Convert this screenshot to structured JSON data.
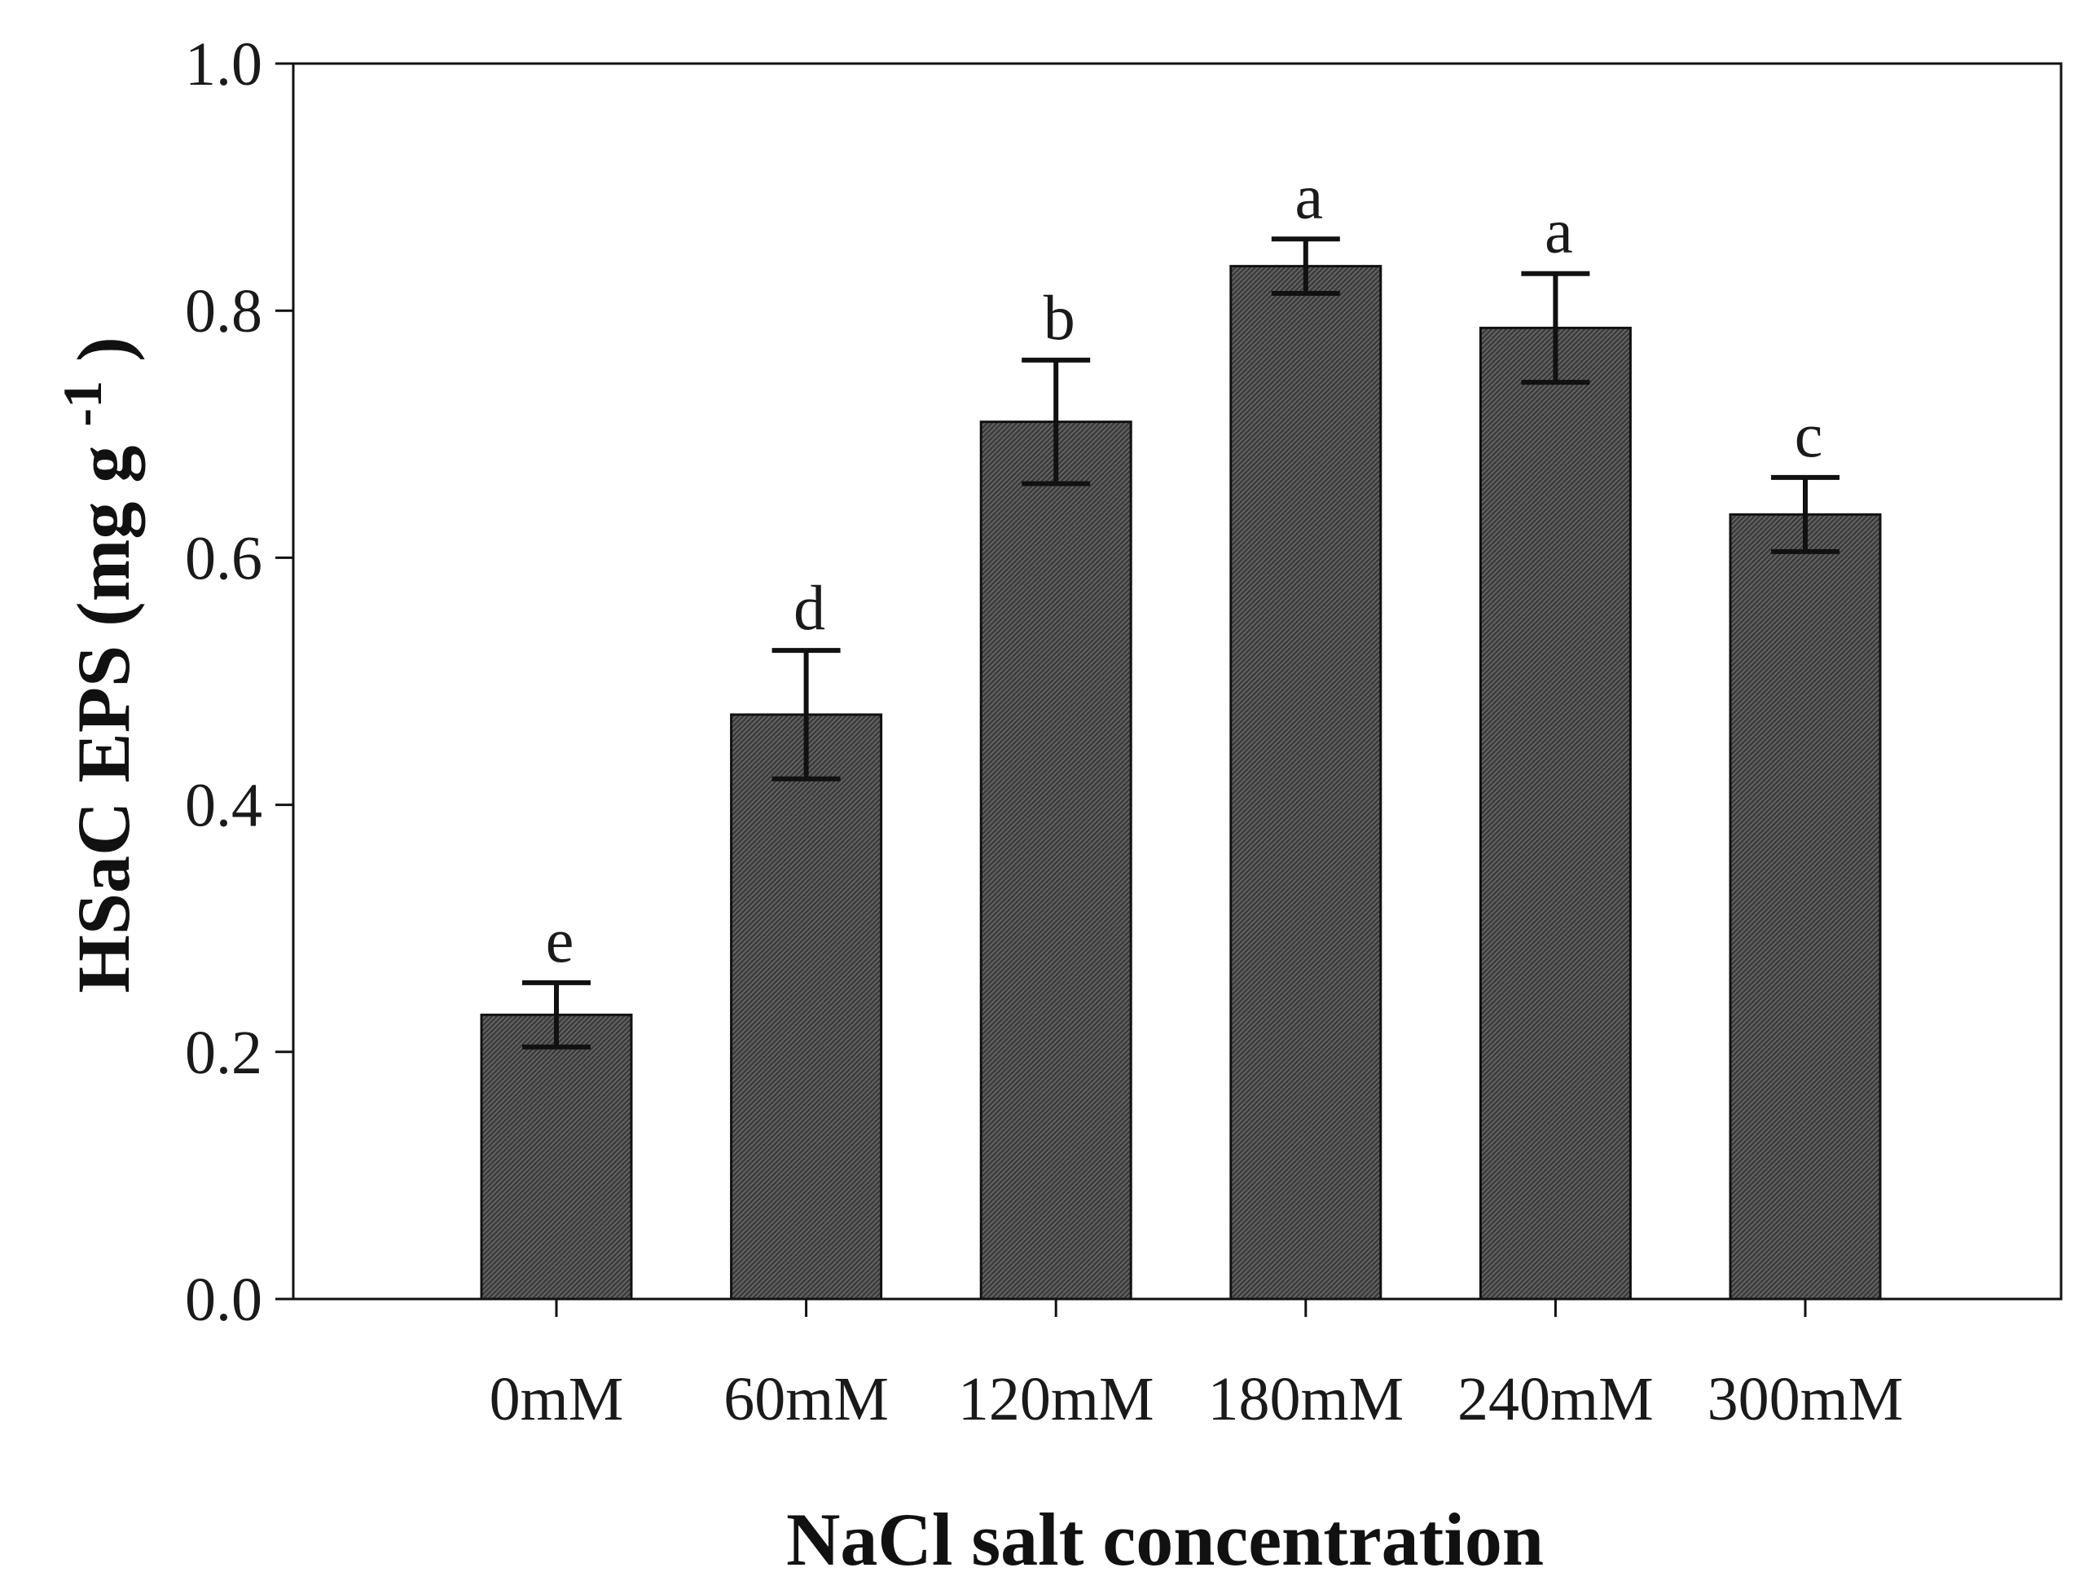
{
  "chart_data": {
    "type": "bar",
    "categories": [
      "0mM",
      "60mM",
      "120mM",
      "180mM",
      "240mM",
      "300mM"
    ],
    "values": [
      0.23,
      0.473,
      0.71,
      0.836,
      0.786,
      0.635
    ],
    "errors": [
      0.026,
      0.052,
      0.05,
      0.022,
      0.044,
      0.03
    ],
    "significance": [
      "e",
      "d",
      "b",
      "a",
      "a",
      "c"
    ],
    "xlabel": "NaCl salt concentration",
    "ylabel_main": "HSaC EPS (mg g",
    "ylabel_sup": "-1",
    "ylabel_close": ")",
    "ylim": [
      0,
      1.0
    ],
    "yticks": [
      "0.0",
      "0.2",
      "0.4",
      "0.6",
      "0.8",
      "1.0"
    ],
    "bar_color": "#4a4a4a",
    "grid": false
  }
}
